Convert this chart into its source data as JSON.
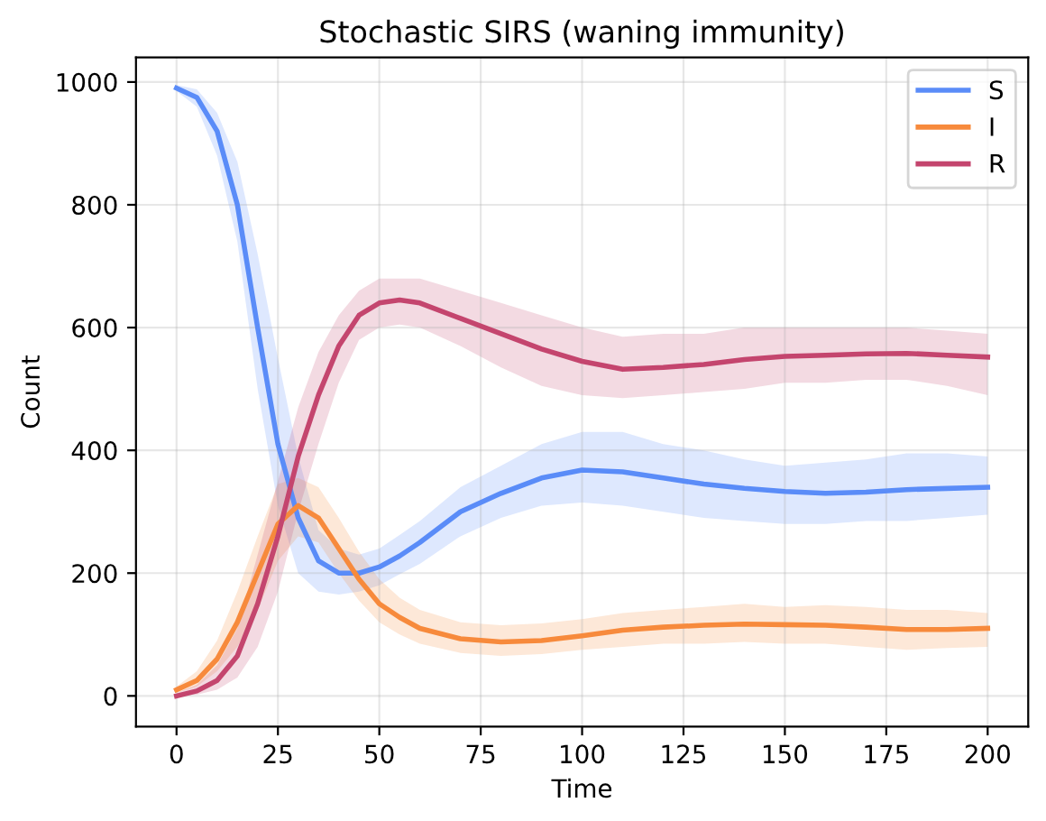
{
  "chart_data": {
    "type": "line",
    "title": "Stochastic SIRS (waning immunity)",
    "xlabel": "Time",
    "ylabel": "Count",
    "x": [
      0,
      5,
      10,
      15,
      20,
      25,
      30,
      35,
      40,
      45,
      50,
      55,
      60,
      70,
      80,
      90,
      100,
      110,
      120,
      130,
      140,
      150,
      160,
      170,
      180,
      190,
      200
    ],
    "series": [
      {
        "name": "S",
        "color": "#5a8cf8",
        "values": [
          990,
          975,
          920,
          800,
          600,
          410,
          290,
          220,
          200,
          200,
          210,
          228,
          250,
          300,
          330,
          355,
          368,
          365,
          355,
          345,
          338,
          333,
          330,
          332,
          336,
          338,
          340
        ],
        "lower": [
          985,
          960,
          880,
          740,
          500,
          310,
          200,
          170,
          165,
          170,
          180,
          198,
          215,
          260,
          290,
          310,
          315,
          310,
          300,
          290,
          285,
          280,
          280,
          285,
          285,
          290,
          295
        ],
        "upper": [
          995,
          988,
          950,
          870,
          720,
          550,
          390,
          270,
          240,
          230,
          240,
          262,
          285,
          340,
          375,
          410,
          430,
          430,
          410,
          400,
          385,
          375,
          380,
          385,
          395,
          395,
          390
        ]
      },
      {
        "name": "I",
        "color": "#f78a3c",
        "values": [
          10,
          25,
          60,
          120,
          200,
          280,
          310,
          290,
          240,
          190,
          150,
          128,
          110,
          93,
          88,
          90,
          98,
          107,
          112,
          115,
          117,
          116,
          115,
          112,
          108,
          108,
          110
        ],
        "lower": [
          5,
          15,
          40,
          80,
          140,
          220,
          260,
          250,
          200,
          155,
          120,
          100,
          85,
          70,
          65,
          68,
          75,
          80,
          85,
          85,
          88,
          85,
          85,
          80,
          75,
          78,
          80
        ],
        "upper": [
          15,
          40,
          90,
          170,
          260,
          345,
          355,
          340,
          290,
          235,
          190,
          160,
          140,
          120,
          115,
          118,
          125,
          135,
          140,
          145,
          150,
          145,
          148,
          145,
          140,
          140,
          135
        ]
      },
      {
        "name": "R",
        "color": "#c4456e",
        "values": [
          0,
          8,
          25,
          65,
          150,
          260,
          390,
          490,
          570,
          620,
          640,
          645,
          640,
          615,
          590,
          565,
          545,
          532,
          535,
          540,
          548,
          553,
          555,
          557,
          558,
          555,
          552
        ],
        "lower": [
          0,
          2,
          10,
          30,
          80,
          170,
          300,
          410,
          510,
          580,
          600,
          605,
          600,
          570,
          535,
          505,
          490,
          485,
          490,
          495,
          500,
          510,
          510,
          515,
          515,
          505,
          490
        ],
        "upper": [
          5,
          18,
          50,
          110,
          230,
          350,
          470,
          560,
          620,
          660,
          680,
          680,
          680,
          660,
          640,
          620,
          600,
          585,
          590,
          590,
          600,
          600,
          600,
          600,
          600,
          595,
          590
        ]
      }
    ],
    "xlim": [
      -10,
      210
    ],
    "xticks": [
      0,
      25,
      50,
      75,
      100,
      125,
      150,
      175,
      200
    ],
    "ylim": [
      -50,
      1040
    ],
    "yticks": [
      0,
      200,
      400,
      600,
      800,
      1000
    ],
    "grid": true,
    "legend": "top right",
    "marker": "none",
    "line_style": "solid"
  }
}
